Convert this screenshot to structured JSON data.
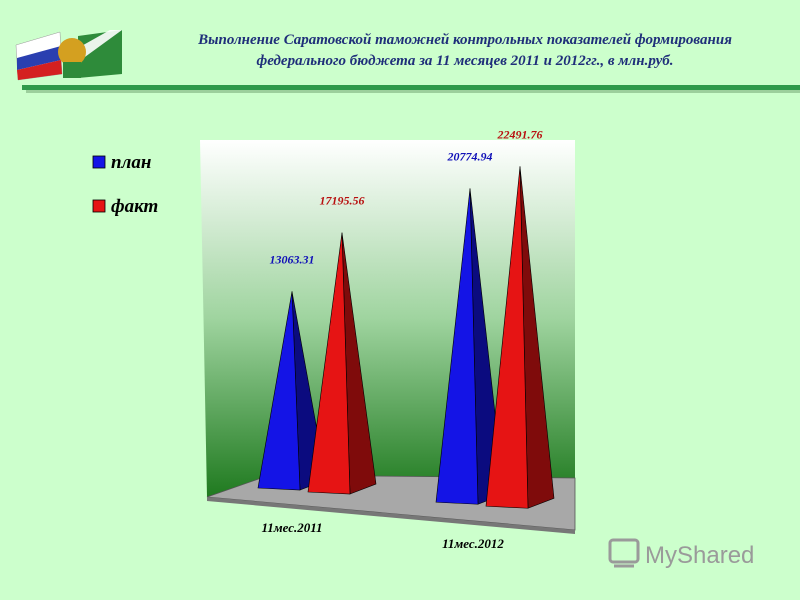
{
  "header": {
    "title_line1": "Выполнение Саратовской таможней контрольных показателей формирования",
    "title_line2": "федерального бюджета за  11 месяцев  2011 и 2012гг., в млн.руб."
  },
  "watermark": "MyShared",
  "chart_data": {
    "type": "pyramid3d",
    "categories": [
      "11мес.2011",
      "11мес.2012"
    ],
    "series": [
      {
        "name": "план",
        "color": "#1414e6",
        "values": [
          13063.31,
          20774.94
        ]
      },
      {
        "name": "факт",
        "color": "#e61414",
        "values": [
          17195.56,
          22491.76
        ]
      }
    ]
  }
}
